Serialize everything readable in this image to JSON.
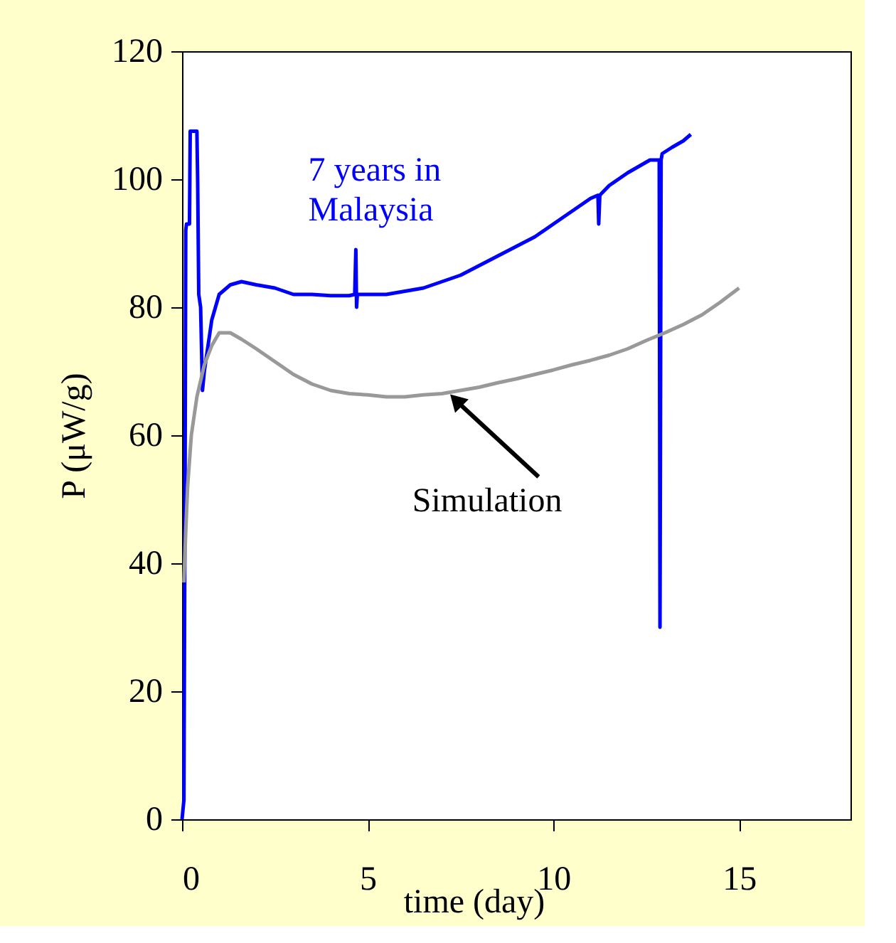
{
  "chart_data": {
    "type": "line",
    "xlabel": "time (day)",
    "ylabel": "P (μW/g)",
    "xlim": [
      0,
      18
    ],
    "xticks": [
      0,
      5,
      10,
      15
    ],
    "ylim": [
      0,
      120
    ],
    "yticks": [
      0,
      20,
      40,
      60,
      80,
      100,
      120
    ],
    "marker": "none",
    "line_style": "solid",
    "series": [
      {
        "name": "7 years in Malaysia",
        "color": "#0000ff",
        "x": [
          0,
          0.05,
          0.08,
          0.1,
          0.12,
          0.2,
          0.22,
          0.4,
          0.42,
          0.45,
          0.5,
          0.55,
          0.6,
          0.8,
          1.0,
          1.3,
          1.6,
          2.0,
          2.5,
          3.0,
          3.5,
          4.0,
          4.5,
          4.65,
          4.68,
          4.7,
          4.72,
          4.8,
          5.5,
          6.0,
          6.5,
          7.0,
          7.5,
          8.0,
          8.5,
          9.0,
          9.5,
          10.0,
          10.5,
          11.0,
          11.2,
          11.22,
          11.25,
          11.5,
          12.0,
          12.3,
          12.6,
          12.85,
          12.87,
          12.9,
          12.93,
          13.2,
          13.5,
          13.7
        ],
        "values": [
          0,
          3,
          50,
          92,
          93,
          93,
          107.5,
          107.5,
          100,
          82,
          80,
          67,
          70,
          78,
          82,
          83.5,
          84,
          83.5,
          83,
          82,
          82,
          81.8,
          81.8,
          82,
          89,
          80,
          82,
          82,
          82,
          82.5,
          83,
          84,
          85,
          86.5,
          88,
          89.5,
          91,
          93,
          95,
          97,
          97.5,
          93,
          97.5,
          99,
          101,
          102,
          103,
          103,
          30,
          103,
          104,
          105,
          106,
          107
        ]
      },
      {
        "color": "#999999",
        "x": [
          0.05,
          0.1,
          0.15,
          0.25,
          0.4,
          0.6,
          0.8,
          1.0,
          1.3,
          1.6,
          2.0,
          2.5,
          3.0,
          3.5,
          4.0,
          4.5,
          5.0,
          5.5,
          6.0,
          6.5,
          7.0,
          7.5,
          8.0,
          8.5,
          9.0,
          9.5,
          10.0,
          10.5,
          11.0,
          11.5,
          12.0,
          12.5,
          13.0,
          13.5,
          14.0,
          14.5,
          15.0
        ],
        "values": [
          37,
          45,
          52,
          60,
          66,
          71,
          74,
          76,
          76,
          75,
          73.5,
          71.5,
          69.5,
          68,
          67,
          66.5,
          66.3,
          66,
          66,
          66.3,
          66.5,
          67,
          67.5,
          68.2,
          68.8,
          69.5,
          70.2,
          71,
          71.7,
          72.5,
          73.5,
          74.8,
          76,
          77.3,
          78.8,
          80.8,
          83
        ]
      }
    ],
    "annotations": [
      {
        "text": "Simulation",
        "x": 7.2,
        "y": 66.5
      }
    ]
  }
}
